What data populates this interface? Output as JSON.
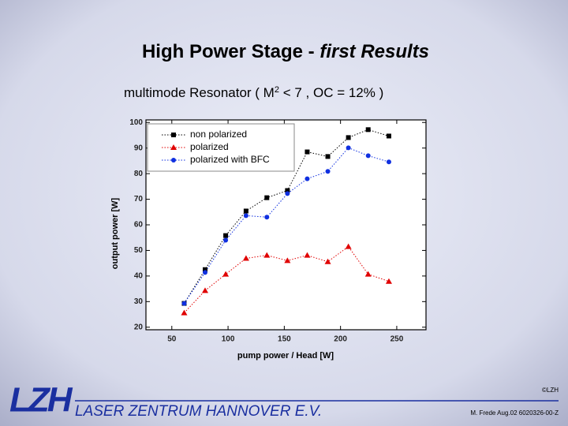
{
  "title": [
    "High Power Stage - ",
    "first Results"
  ],
  "subtitle": [
    "multimode Resonator ( M",
    "2",
    " < 7 , OC = 12% )"
  ],
  "chart_data": {
    "type": "scatter",
    "x_label": "pump power / Head [W]",
    "y_label": "output power [W]",
    "x": [
      61,
      79.6,
      97.9,
      116,
      134.5,
      152.8,
      170.4,
      188.7,
      207,
      224.6,
      243
    ],
    "series": [
      {
        "name": "non polarized",
        "color": "#000000",
        "marker": "square",
        "values": [
          29.3,
          42.5,
          55.8,
          65.4,
          70.6,
          73.4,
          88.5,
          86.7,
          94.1,
          97.2,
          94.7
        ]
      },
      {
        "name": "polarized",
        "color": "#e00000",
        "marker": "triangle",
        "values": [
          25.6,
          34.3,
          40.7,
          46.9,
          48.1,
          46,
          48.1,
          45.6,
          51.5,
          40.7,
          37.9
        ]
      },
      {
        "name": "polarized with BFC",
        "color": "#1030e0",
        "marker": "circle",
        "values": [
          29.3,
          41.4,
          54,
          63.6,
          63,
          72.2,
          78,
          80.9,
          90.1,
          87,
          84.6
        ]
      }
    ],
    "line_style": "dotted",
    "xlim": [
      27,
      276
    ],
    "xticks": [
      50,
      100,
      150,
      200,
      250
    ],
    "ylim": [
      19,
      101
    ],
    "yticks": [
      20,
      30,
      40,
      50,
      60,
      70,
      80,
      90,
      100
    ],
    "legend": "upper-left",
    "grid": false
  },
  "footer": {
    "logo": "LZH",
    "institute": "LASER ZENTRUM HANNOVER E.V.",
    "copyright": "©LZH",
    "reference": "M. Frede Aug.02 6020326-00-Z"
  }
}
